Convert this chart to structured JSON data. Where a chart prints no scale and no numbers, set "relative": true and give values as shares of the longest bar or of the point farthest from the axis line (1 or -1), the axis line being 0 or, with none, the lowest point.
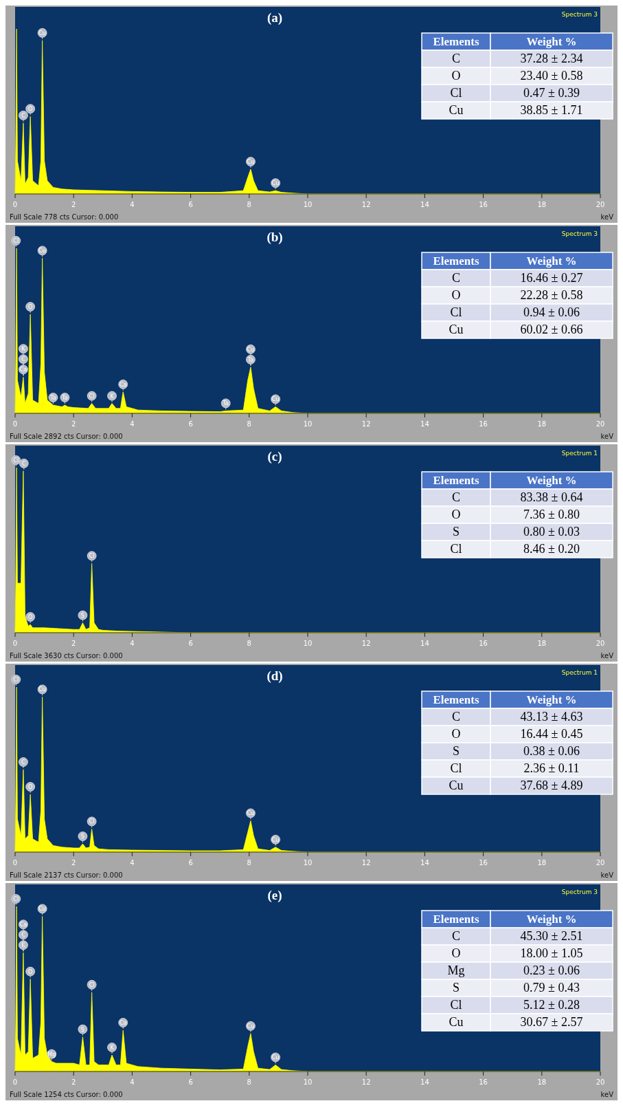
{
  "chart_data": [
    {
      "type": "area",
      "title": "(a)",
      "xlabel": "keV",
      "color": "#ffff00",
      "relative": true,
      "tick_labels": "x",
      "xlim": [
        0,
        20
      ],
      "xticks": [
        0,
        2,
        4,
        6,
        8,
        10,
        12,
        14,
        16,
        18,
        20
      ],
      "x": [
        0,
        0.02,
        0.05,
        0.08,
        0.2,
        0.28,
        0.34,
        0.45,
        0.52,
        0.6,
        0.8,
        0.88,
        0.93,
        1.0,
        1.1,
        1.3,
        1.6,
        2,
        3,
        4,
        5,
        6,
        7,
        7.8,
        7.95,
        8.05,
        8.15,
        8.3,
        8.7,
        8.9,
        9.1,
        9.5,
        10,
        20
      ],
      "values": [
        0,
        0.3,
        1,
        0.2,
        0.08,
        0.43,
        0.06,
        0.1,
        0.47,
        0.08,
        0.05,
        0.2,
        0.93,
        0.2,
        0.08,
        0.04,
        0.03,
        0.025,
        0.02,
        0.015,
        0.012,
        0.01,
        0.01,
        0.02,
        0.1,
        0.15,
        0.08,
        0.02,
        0.012,
        0.02,
        0.01,
        0.005,
        0,
        0
      ],
      "annotations": [
        "Spectrum 3",
        "Full Scale 778 cts Cursor: 0.000",
        "Elements",
        "Weight %",
        "C",
        "37.28 ± 2.34",
        "O",
        "23.40 ± 0.58",
        "Cl",
        "0.47 ± 0.39",
        "Cu",
        "38.85 ± 1.71",
        {
          "text": "Cu",
          "x": 0.93,
          "y": 0.93
        },
        {
          "text": "O",
          "x": 0.52,
          "y": 0.47
        },
        {
          "text": "C",
          "x": 0.28,
          "y": 0.43
        },
        {
          "text": "Cu",
          "x": 8.05,
          "y": 0.15
        },
        {
          "text": "Cu",
          "x": 8.9,
          "y": 0.02
        }
      ]
    },
    {
      "type": "area",
      "title": "(b)",
      "xlabel": "keV",
      "color": "#ffff00",
      "relative": true,
      "tick_labels": "x",
      "xlim": [
        0,
        20
      ],
      "xticks": [
        0,
        2,
        4,
        6,
        8,
        10,
        12,
        14,
        16,
        18,
        20
      ],
      "x": [
        0,
        0.02,
        0.05,
        0.08,
        0.2,
        0.28,
        0.34,
        0.45,
        0.52,
        0.6,
        0.8,
        0.88,
        0.93,
        1.0,
        1.1,
        1.3,
        1.6,
        1.7,
        1.8,
        2,
        2.5,
        2.62,
        2.75,
        3.2,
        3.31,
        3.45,
        3.6,
        3.69,
        3.8,
        4,
        4.2,
        5,
        6,
        7,
        7.2,
        7.8,
        7.95,
        8.05,
        8.15,
        8.3,
        8.7,
        8.9,
        9.1,
        9.5,
        10,
        20
      ],
      "values": [
        0,
        0.3,
        1,
        0.2,
        0.1,
        0.22,
        0.06,
        0.12,
        0.6,
        0.08,
        0.06,
        0.3,
        0.94,
        0.25,
        0.08,
        0.05,
        0.04,
        0.05,
        0.04,
        0.035,
        0.03,
        0.06,
        0.03,
        0.03,
        0.06,
        0.03,
        0.03,
        0.13,
        0.04,
        0.03,
        0.02,
        0.015,
        0.012,
        0.01,
        0.015,
        0.02,
        0.2,
        0.28,
        0.15,
        0.03,
        0.015,
        0.04,
        0.015,
        0.005,
        0,
        0
      ],
      "annotations": [
        "Spectrum 3",
        "Full Scale 2892 cts  Cursor: 0.000",
        "Elements",
        "Weight %",
        "C",
        "16.46 ± 0.27",
        "O",
        "22.28 ± 0.58",
        "Cl",
        "0.94 ± 0.06",
        "Cu",
        "60.02 ± 0.66",
        {
          "text": "Cl",
          "x": 0.03,
          "y": 1
        },
        {
          "text": "Cu",
          "x": 0.93,
          "y": 0.94
        },
        {
          "text": "O",
          "x": 0.52,
          "y": 0.6
        },
        {
          "text": "Ca",
          "x": 0.28,
          "y": 0.22
        },
        {
          "text": "C",
          "x": 0.28,
          "y": 0.22
        },
        {
          "text": "K",
          "x": 0.28,
          "y": 0.22
        },
        {
          "text": "Ta",
          "x": 1.3,
          "y": 0.05
        },
        {
          "text": "Ta",
          "x": 1.7,
          "y": 0.05
        },
        {
          "text": "Cl",
          "x": 2.62,
          "y": 0.06
        },
        {
          "text": "K",
          "x": 3.31,
          "y": 0.06
        },
        {
          "text": "Ca",
          "x": 3.69,
          "y": 0.13
        },
        {
          "text": "Ta",
          "x": 7.2,
          "y": 0.015
        },
        {
          "text": "Ta",
          "x": 8.05,
          "y": 0.28
        },
        {
          "text": "Cu",
          "x": 8.05,
          "y": 0.28
        },
        {
          "text": "Cu",
          "x": 8.9,
          "y": 0.04
        }
      ]
    },
    {
      "type": "area",
      "title": "(c)",
      "xlabel": "keV",
      "color": "#ffff00",
      "relative": true,
      "tick_labels": "x",
      "xlim": [
        0,
        20
      ],
      "xticks": [
        0,
        2,
        4,
        6,
        8,
        10,
        12,
        14,
        16,
        18,
        20
      ],
      "x": [
        0,
        0.02,
        0.05,
        0.08,
        0.2,
        0.28,
        0.34,
        0.45,
        0.52,
        0.6,
        0.8,
        1,
        1.5,
        2,
        2.2,
        2.31,
        2.42,
        2.55,
        2.62,
        2.7,
        2.85,
        3,
        3.5,
        4,
        5,
        6,
        20
      ],
      "values": [
        0,
        0.3,
        1,
        0.3,
        0.3,
        0.98,
        0.1,
        0.04,
        0.05,
        0.03,
        0.03,
        0.03,
        0.025,
        0.02,
        0.02,
        0.06,
        0.02,
        0.03,
        0.42,
        0.06,
        0.02,
        0.015,
        0.01,
        0.008,
        0.004,
        0,
        0
      ],
      "annotations": [
        "Spectrum 1",
        "Full Scale 3630 cts  Cursor: 0.000",
        "Elements",
        "Weight %",
        "C",
        "83.38 ± 0.64",
        "O",
        "7.36 ± 0.80",
        "S",
        "0.80 ± 0.03",
        "Cl",
        "8.46 ± 0.20",
        {
          "text": "Cl",
          "x": 0.03,
          "y": 1
        },
        {
          "text": "C",
          "x": 0.3,
          "y": 0.98
        },
        {
          "text": "O",
          "x": 0.52,
          "y": 0.05
        },
        {
          "text": "S",
          "x": 2.31,
          "y": 0.06
        },
        {
          "text": "Cl",
          "x": 2.62,
          "y": 0.42
        }
      ]
    },
    {
      "type": "area",
      "title": "(d)",
      "xlabel": "keV",
      "color": "#ffff00",
      "relative": true,
      "tick_labels": "x",
      "xlim": [
        0,
        20
      ],
      "xticks": [
        0,
        2,
        4,
        6,
        8,
        10,
        12,
        14,
        16,
        18,
        20
      ],
      "x": [
        0,
        0.02,
        0.05,
        0.08,
        0.2,
        0.28,
        0.34,
        0.45,
        0.52,
        0.6,
        0.8,
        0.88,
        0.93,
        1.0,
        1.1,
        1.3,
        1.6,
        2,
        2.2,
        2.31,
        2.42,
        2.55,
        2.62,
        2.7,
        2.85,
        3.2,
        4,
        5,
        6,
        7,
        7.8,
        7.95,
        8.05,
        8.15,
        8.3,
        8.7,
        8.9,
        9.1,
        9.5,
        10,
        20
      ],
      "values": [
        0,
        0.3,
        1,
        0.2,
        0.1,
        0.5,
        0.08,
        0.1,
        0.35,
        0.08,
        0.06,
        0.25,
        0.94,
        0.2,
        0.08,
        0.04,
        0.03,
        0.025,
        0.025,
        0.05,
        0.025,
        0.03,
        0.14,
        0.04,
        0.02,
        0.015,
        0.012,
        0.01,
        0.008,
        0.008,
        0.015,
        0.12,
        0.19,
        0.1,
        0.02,
        0.01,
        0.03,
        0.01,
        0.005,
        0,
        0
      ],
      "annotations": [
        "Spectrum 1",
        "Full Scale 2137 cts  Cursor: 0.000",
        "Elements",
        "Weight %",
        "C",
        "43.13 ± 4.63",
        "O",
        "16.44 ± 0.45",
        "S",
        "0.38 ± 0.06",
        "Cl",
        "2.36 ± 0.11",
        "Cu",
        "37.68 ± 4.89",
        {
          "text": "Cl",
          "x": 0.03,
          "y": 1
        },
        {
          "text": "Cu",
          "x": 0.93,
          "y": 0.94
        },
        {
          "text": "C",
          "x": 0.28,
          "y": 0.5
        },
        {
          "text": "O",
          "x": 0.52,
          "y": 0.35
        },
        {
          "text": "S",
          "x": 2.31,
          "y": 0.05
        },
        {
          "text": "Cl",
          "x": 2.62,
          "y": 0.14
        },
        {
          "text": "Cu",
          "x": 8.05,
          "y": 0.19
        },
        {
          "text": "Cu",
          "x": 8.9,
          "y": 0.03
        }
      ]
    },
    {
      "type": "area",
      "title": "(e)",
      "xlabel": "keV",
      "color": "#ffff00",
      "relative": true,
      "tick_labels": "x",
      "xlim": [
        0,
        20
      ],
      "xticks": [
        0,
        2,
        4,
        6,
        8,
        10,
        12,
        14,
        16,
        18,
        20
      ],
      "x": [
        0,
        0.02,
        0.05,
        0.08,
        0.2,
        0.28,
        0.34,
        0.45,
        0.52,
        0.6,
        0.8,
        0.88,
        0.93,
        1.0,
        1.1,
        1.25,
        1.4,
        1.6,
        2,
        2.2,
        2.31,
        2.42,
        2.55,
        2.62,
        2.7,
        2.85,
        3.2,
        3.31,
        3.45,
        3.6,
        3.69,
        3.8,
        4,
        4.2,
        5,
        6,
        7,
        7.8,
        7.95,
        8.05,
        8.15,
        8.3,
        8.7,
        8.9,
        9.1,
        9.5,
        10,
        20
      ],
      "values": [
        0,
        0.3,
        1,
        0.2,
        0.1,
        0.72,
        0.1,
        0.12,
        0.56,
        0.08,
        0.1,
        0.3,
        0.94,
        0.2,
        0.1,
        0.06,
        0.05,
        0.05,
        0.05,
        0.04,
        0.21,
        0.04,
        0.04,
        0.48,
        0.06,
        0.04,
        0.04,
        0.1,
        0.04,
        0.04,
        0.25,
        0.05,
        0.04,
        0.03,
        0.02,
        0.015,
        0.01,
        0.015,
        0.15,
        0.23,
        0.12,
        0.02,
        0.012,
        0.04,
        0.012,
        0.005,
        0,
        0
      ],
      "annotations": [
        "Spectrum 3",
        "Full Scale 1254 cts  Cursor: 0.000",
        "Elements",
        "Weight %",
        "C",
        "45.30 ± 2.51",
        "O",
        "18.00 ± 1.05",
        "Mg",
        "0.23 ± 0.06",
        "S",
        "0.79 ± 0.43",
        "Cl",
        "5.12 ± 0.28",
        "Cu",
        "30.67 ± 2.57",
        {
          "text": "Cl",
          "x": 0.03,
          "y": 1
        },
        {
          "text": "K",
          "x": 0.28,
          "y": 0.72
        },
        {
          "text": "C",
          "x": 0.28,
          "y": 0.72
        },
        {
          "text": "Ca",
          "x": 0.28,
          "y": 0.72
        },
        {
          "text": "O",
          "x": 0.52,
          "y": 0.56
        },
        {
          "text": "Cu",
          "x": 0.93,
          "y": 0.94
        },
        {
          "text": "Mg",
          "x": 1.25,
          "y": 0.06
        },
        {
          "text": "S",
          "x": 2.31,
          "y": 0.21
        },
        {
          "text": "Cl",
          "x": 2.62,
          "y": 0.48
        },
        {
          "text": "K",
          "x": 3.31,
          "y": 0.1
        },
        {
          "text": "Ca",
          "x": 3.69,
          "y": 0.25
        },
        {
          "text": "Cu",
          "x": 8.05,
          "y": 0.23
        },
        {
          "text": "Cu",
          "x": 8.9,
          "y": 0.04
        }
      ]
    }
  ]
}
